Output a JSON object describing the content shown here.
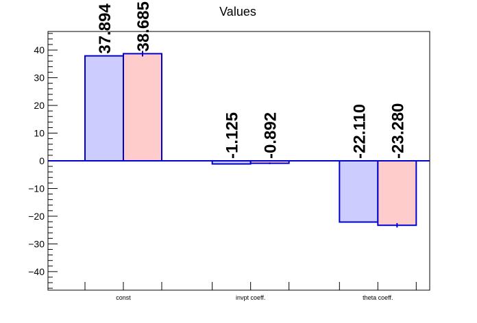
{
  "chart_data": {
    "type": "bar",
    "title": "Values",
    "xlabel": "",
    "ylabel": "",
    "categories": [
      "const",
      "invpt coeff.",
      "theta coeff."
    ],
    "series": [
      {
        "values": [
          37.894,
          -1.125,
          -22.11
        ],
        "labels": [
          "37.894",
          "-1.125",
          "-22.110"
        ],
        "color": "#ccccff",
        "errors": [
          0,
          0,
          0
        ]
      },
      {
        "values": [
          38.685,
          -0.892,
          -23.28
        ],
        "labels": [
          "38.685",
          "-0.892",
          "-23.280"
        ],
        "color": "#ffcccc",
        "errors": [
          1.0,
          0.3,
          0.8
        ]
      }
    ],
    "ylim": [
      -46.7,
      46.7
    ],
    "yticks": [
      -40,
      -30,
      -20,
      -10,
      0,
      10,
      20,
      30,
      40
    ],
    "ytick_labels": [
      "−40",
      "−30",
      "−20",
      "−10",
      "0",
      "10",
      "20",
      "30",
      "40"
    ],
    "grid": false,
    "legend": "none",
    "bar_edge_color": "#0000cc",
    "zero_line_color": "#0000cc"
  }
}
